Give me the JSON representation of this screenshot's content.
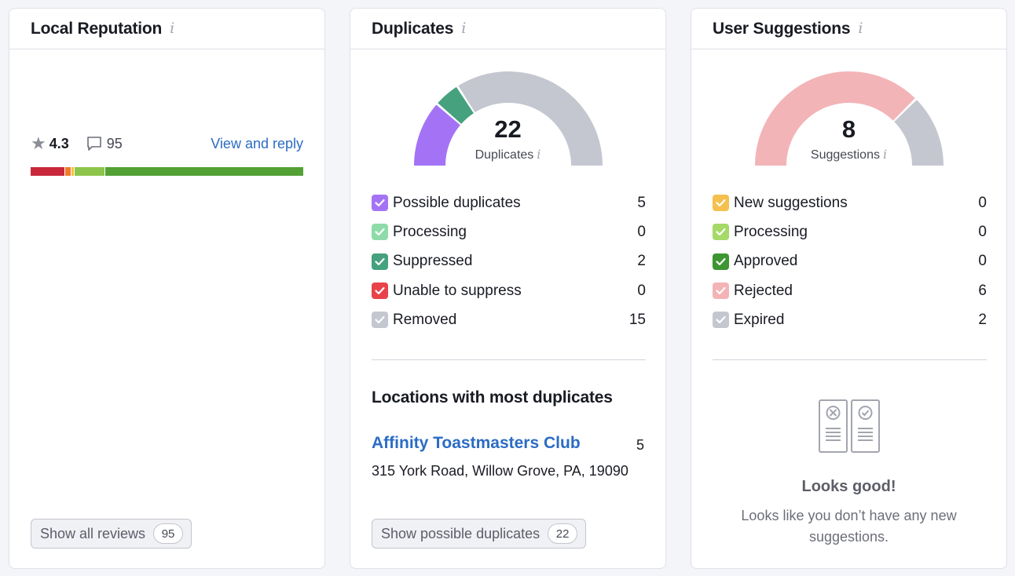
{
  "local_reputation": {
    "title": "Local Reputation",
    "rating": "4.3",
    "review_count": "95",
    "view_reply_label": "View and reply",
    "bar_segments": [
      {
        "color": "#c9283a",
        "fraction": 0.125
      },
      {
        "color": "#f27a2a",
        "fraction": 0.02
      },
      {
        "color": "#f5c343",
        "fraction": 0.01
      },
      {
        "color": "#8dc54a",
        "fraction": 0.11
      },
      {
        "color": "#53a035",
        "fraction": 0.735
      }
    ],
    "show_all_label": "Show all reviews",
    "show_all_count": "95"
  },
  "duplicates": {
    "title": "Duplicates",
    "total": "22",
    "total_label": "Duplicates",
    "items": [
      {
        "label": "Possible duplicates",
        "value": "5",
        "color": "#a473f5"
      },
      {
        "label": "Processing",
        "value": "0",
        "color": "#8edba9"
      },
      {
        "label": "Suppressed",
        "value": "2",
        "color": "#45a17e"
      },
      {
        "label": "Unable to suppress",
        "value": "0",
        "color": "#e8434a"
      },
      {
        "label": "Removed",
        "value": "15",
        "color": "#c4c7d0"
      }
    ],
    "locations_title": "Locations with most duplicates",
    "location_name": "Affinity Toastmasters Club",
    "location_count": "5",
    "location_address": "315 York Road, Willow Grove, PA, 19090",
    "show_label": "Show possible duplicates",
    "show_count": "22"
  },
  "suggestions": {
    "title": "User Suggestions",
    "total": "8",
    "total_label": "Suggestions",
    "items": [
      {
        "label": "New suggestions",
        "value": "0",
        "color": "#f5c04e"
      },
      {
        "label": "Processing",
        "value": "0",
        "color": "#a5d968"
      },
      {
        "label": "Approved",
        "value": "0",
        "color": "#3d9631"
      },
      {
        "label": "Rejected",
        "value": "6",
        "color": "#f3b4b7"
      },
      {
        "label": "Expired",
        "value": "2",
        "color": "#c4c7d0"
      }
    ],
    "empty_title": "Looks good!",
    "empty_desc": "Looks like you don’t have any new suggestions."
  }
}
